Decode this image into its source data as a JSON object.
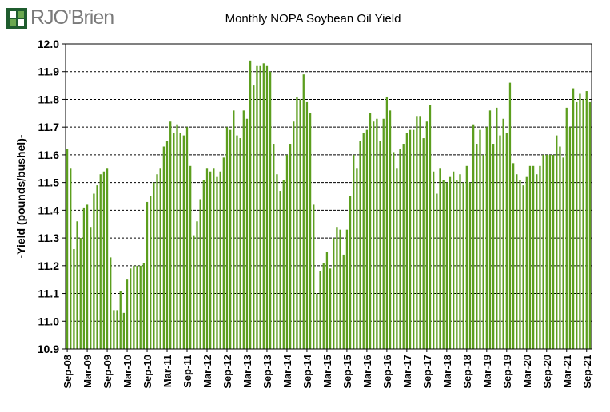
{
  "brand": {
    "logo_text": "RJO'Brien",
    "logo_color": "#1f5c2e",
    "logo_accent": "#6aa84f"
  },
  "chart_data": {
    "type": "bar",
    "title": "Monthly NOPA Soybean Oil Yield",
    "ylabel": "-Yield (pounds/bushel)-",
    "xlabel": "",
    "ylim": [
      10.9,
      12.0
    ],
    "yticks": [
      "12.0",
      "11.9",
      "11.8",
      "11.7",
      "11.6",
      "11.5",
      "11.4",
      "11.3",
      "11.2",
      "11.1",
      "11.0",
      "10.9"
    ],
    "bar_color": "#5c9e1e",
    "grid": true,
    "x_tick_labels": [
      "Sep-08",
      "Mar-09",
      "Sep-09",
      "Mar-10",
      "Sep-10",
      "Mar-11",
      "Sep-11",
      "Mar-12",
      "Sep-12",
      "Mar-13",
      "Sep-13",
      "Mar-14",
      "Sep-14",
      "Mar-15",
      "Sep-15",
      "Mar-16",
      "Sep-16",
      "Mar-17",
      "Sep-17",
      "Mar-18",
      "Sep-18",
      "Mar-19",
      "Sep-19",
      "Mar-20",
      "Sep-20",
      "Mar-21",
      "Sep-21"
    ],
    "first_period": "Sep-08",
    "values": [
      11.62,
      11.55,
      11.26,
      11.36,
      11.3,
      11.41,
      11.42,
      11.34,
      11.46,
      11.49,
      11.53,
      11.54,
      11.55,
      11.23,
      11.04,
      11.04,
      11.11,
      11.03,
      11.15,
      11.19,
      11.2,
      11.2,
      11.2,
      11.21,
      11.43,
      11.45,
      11.5,
      11.53,
      11.55,
      11.63,
      11.65,
      11.72,
      11.68,
      11.71,
      11.68,
      11.67,
      11.7,
      11.56,
      11.31,
      11.36,
      11.44,
      11.51,
      11.55,
      11.54,
      11.55,
      11.52,
      11.54,
      11.59,
      11.7,
      11.69,
      11.76,
      11.67,
      11.66,
      11.76,
      11.73,
      11.94,
      11.85,
      11.92,
      11.92,
      11.93,
      11.92,
      11.9,
      11.64,
      11.53,
      11.47,
      11.51,
      11.6,
      11.64,
      11.72,
      11.81,
      11.8,
      11.89,
      11.79,
      11.75,
      11.42,
      11.1,
      11.18,
      11.21,
      11.25,
      11.19,
      11.3,
      11.34,
      11.33,
      11.24,
      11.33,
      11.45,
      11.6,
      11.55,
      11.65,
      11.68,
      11.69,
      11.75,
      11.72,
      11.73,
      11.65,
      11.73,
      11.81,
      11.76,
      11.61,
      11.55,
      11.62,
      11.64,
      11.68,
      11.69,
      11.69,
      11.74,
      11.74,
      11.66,
      11.72,
      11.78,
      11.54,
      11.46,
      11.55,
      11.51,
      11.5,
      11.52,
      11.54,
      11.51,
      11.53,
      11.5,
      11.56,
      11.5,
      11.71,
      11.64,
      11.69,
      11.6,
      11.7,
      11.76,
      11.64,
      11.77,
      11.67,
      11.73,
      11.68,
      11.86,
      11.57,
      11.53,
      11.51,
      11.49,
      11.52,
      11.56,
      11.56,
      11.53,
      11.56,
      11.6,
      11.6,
      11.6,
      11.6,
      11.67,
      11.63,
      11.59,
      11.77,
      11.7,
      11.84,
      11.79,
      11.82,
      11.8,
      11.83,
      11.79
    ]
  }
}
